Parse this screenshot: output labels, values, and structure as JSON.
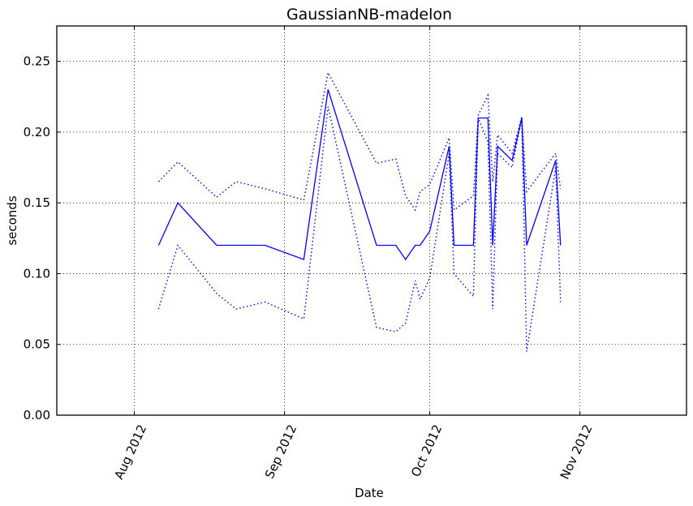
{
  "chart_data": {
    "type": "line",
    "title": "GaussianNB-madelon",
    "xlabel": "Date",
    "ylabel": "seconds",
    "xlim": [
      "2012-07-16",
      "2012-11-23"
    ],
    "ylim": [
      0,
      0.275
    ],
    "grid": true,
    "x_ticks": [
      {
        "date": "2012-08-01",
        "label": "Aug 2012"
      },
      {
        "date": "2012-09-01",
        "label": "Sep 2012"
      },
      {
        "date": "2012-10-01",
        "label": "Oct 2012"
      },
      {
        "date": "2012-11-01",
        "label": "Nov 2012"
      }
    ],
    "y_ticks": [
      {
        "value": 0.0,
        "label": "0.00"
      },
      {
        "value": 0.05,
        "label": "0.05"
      },
      {
        "value": 0.1,
        "label": "0.10"
      },
      {
        "value": 0.15,
        "label": "0.15"
      },
      {
        "value": 0.2,
        "label": "0.20"
      },
      {
        "value": 0.25,
        "label": "0.25"
      }
    ],
    "x": [
      "2012-08-06",
      "2012-08-10",
      "2012-08-18",
      "2012-08-22",
      "2012-08-28",
      "2012-09-05",
      "2012-09-10",
      "2012-09-20",
      "2012-09-24",
      "2012-09-26",
      "2012-09-28",
      "2012-09-29",
      "2012-10-01",
      "2012-10-05",
      "2012-10-06",
      "2012-10-10",
      "2012-10-11",
      "2012-10-13",
      "2012-10-14",
      "2012-10-15",
      "2012-10-18",
      "2012-10-20",
      "2012-10-21",
      "2012-10-27",
      "2012-10-28"
    ],
    "series": [
      {
        "style": "solid",
        "color": "#0000ff",
        "values": [
          0.12,
          0.15,
          0.12,
          0.12,
          0.12,
          0.11,
          0.23,
          0.12,
          0.12,
          0.11,
          0.12,
          0.12,
          0.13,
          0.19,
          0.12,
          0.12,
          0.21,
          0.21,
          0.12,
          0.19,
          0.18,
          0.21,
          0.12,
          0.18,
          0.12
        ]
      },
      {
        "style": "dotted",
        "color": "#0000ff",
        "values": [
          0.165,
          0.179,
          0.154,
          0.165,
          0.16,
          0.152,
          0.242,
          0.178,
          0.181,
          0.155,
          0.145,
          0.158,
          0.163,
          0.196,
          0.145,
          0.155,
          0.212,
          0.226,
          0.165,
          0.198,
          0.185,
          0.211,
          0.158,
          0.185,
          0.16
        ]
      },
      {
        "style": "dotted",
        "color": "#0000ff",
        "values": [
          0.075,
          0.12,
          0.086,
          0.075,
          0.08,
          0.068,
          0.218,
          0.062,
          0.059,
          0.065,
          0.095,
          0.082,
          0.097,
          0.185,
          0.1,
          0.084,
          0.21,
          0.193,
          0.075,
          0.185,
          0.175,
          0.21,
          0.045,
          0.175,
          0.08
        ]
      }
    ]
  }
}
